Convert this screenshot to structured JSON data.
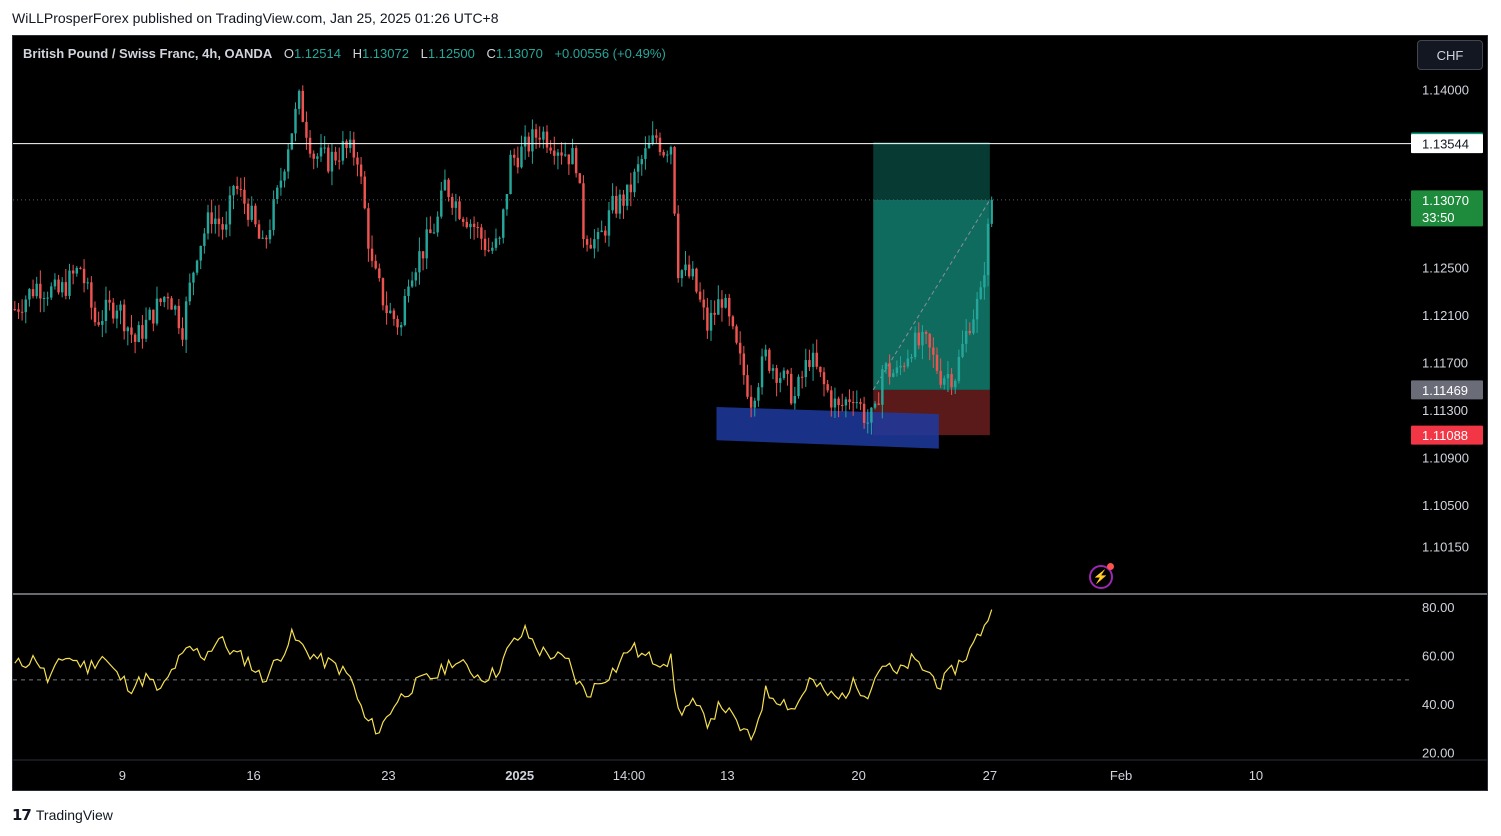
{
  "header": {
    "caption": "WiLLProsperForex published on TradingView.com, Jan 25, 2025 01:26 UTC+8"
  },
  "legend": {
    "title": "British Pound / Swiss Franc, 4h, OANDA",
    "o_label": "O",
    "o_value": "1.12514",
    "h_label": "H",
    "h_value": "1.13072",
    "l_label": "L",
    "l_value": "1.12500",
    "c_label": "C",
    "c_value": "1.13070",
    "change": "+0.00556 (+0.49%)"
  },
  "currency_button": "CHF",
  "footer": {
    "brand": "TradingView",
    "logo_icon": "tradingview-logo-icon"
  },
  "colors": {
    "up": "#26a69a",
    "down": "#ef5350",
    "background": "#000000",
    "rsi": "#f5e050",
    "target_zone": "#0e6b5e",
    "stop_zone": "#5a1a1a",
    "support_zone": "#1e3aa0"
  },
  "chart_data": [
    {
      "type": "candlestick",
      "title": "British Pound / Swiss Franc, 4h, OANDA",
      "ylim": [
        1.0975,
        1.1445
      ],
      "y_ticks": [
        "1.14000",
        "1.12500",
        "1.12100",
        "1.11700",
        "1.11300",
        "1.10900",
        "1.10500",
        "1.10150"
      ],
      "y_tick_values": [
        1.14,
        1.125,
        1.121,
        1.117,
        1.113,
        1.109,
        1.105,
        1.1015
      ],
      "x_ticks": [
        "9",
        "16",
        "23",
        "2025",
        "14:00",
        "13",
        "20",
        "27",
        "Feb",
        "10"
      ],
      "x_tick_bars": [
        30,
        66,
        103,
        139,
        169,
        196,
        232,
        268,
        304,
        341
      ],
      "price_levels": [
        {
          "label": "1.13557",
          "value": 1.13557,
          "color": "#089981"
        },
        {
          "label": "1.13544",
          "value": 1.13544,
          "color": "#ffffff"
        },
        {
          "label": "1.13070",
          "value": 1.1307,
          "color": "#1e8a3c",
          "sub": "33:50"
        },
        {
          "label": "1.11469",
          "value": 1.11469,
          "color": "#6a6d78"
        },
        {
          "label": "1.11088",
          "value": 1.11088,
          "color": "#f23645"
        }
      ],
      "horizontal_line": 1.13544,
      "last_price_line": 1.1307,
      "position_tool": {
        "start_bar": 236,
        "end_bar": 268,
        "target": 1.13557,
        "entry": 1.11469,
        "stop": 1.11088,
        "current": 1.1307
      },
      "support_zone": {
        "start_bar": 193,
        "end_bar": 254,
        "top_start": 1.11325,
        "bottom_start": 1.11045,
        "top_end": 1.11265,
        "bottom_end": 1.10975
      },
      "close_path": [
        [
          0,
          1.1215
        ],
        [
          6,
          1.1235
        ],
        [
          12,
          1.1228
        ],
        [
          18,
          1.125
        ],
        [
          22,
          1.1205
        ],
        [
          28,
          1.122
        ],
        [
          33,
          1.1188
        ],
        [
          38,
          1.1212
        ],
        [
          42,
          1.123
        ],
        [
          46,
          1.12
        ],
        [
          50,
          1.1265
        ],
        [
          54,
          1.1295
        ],
        [
          58,
          1.128
        ],
        [
          60,
          1.132
        ],
        [
          64,
          1.13
        ],
        [
          68,
          1.1265
        ],
        [
          72,
          1.131
        ],
        [
          75,
          1.1355
        ],
        [
          78,
          1.139
        ],
        [
          82,
          1.1345
        ],
        [
          86,
          1.134
        ],
        [
          90,
          1.135
        ],
        [
          94,
          1.1345
        ],
        [
          98,
          1.125
        ],
        [
          102,
          1.1215
        ],
        [
          106,
          1.12
        ],
        [
          108,
          1.1245
        ],
        [
          112,
          1.1265
        ],
        [
          116,
          1.129
        ],
        [
          118,
          1.132
        ],
        [
          122,
          1.13
        ],
        [
          126,
          1.1285
        ],
        [
          130,
          1.1265
        ],
        [
          133,
          1.127
        ],
        [
          136,
          1.134
        ],
        [
          140,
          1.135
        ],
        [
          144,
          1.1365
        ],
        [
          148,
          1.1355
        ],
        [
          152,
          1.1345
        ],
        [
          154,
          1.134
        ],
        [
          156,
          1.128
        ],
        [
          160,
          1.127
        ],
        [
          164,
          1.13
        ],
        [
          168,
          1.131
        ],
        [
          172,
          1.134
        ],
        [
          176,
          1.136
        ],
        [
          178,
          1.135
        ],
        [
          180,
          1.1355
        ],
        [
          182,
          1.125
        ],
        [
          186,
          1.124
        ],
        [
          190,
          1.12
        ],
        [
          194,
          1.1225
        ],
        [
          198,
          1.118
        ],
        [
          202,
          1.114
        ],
        [
          206,
          1.1175
        ],
        [
          210,
          1.116
        ],
        [
          214,
          1.114
        ],
        [
          218,
          1.1175
        ],
        [
          222,
          1.115
        ],
        [
          226,
          1.113
        ],
        [
          230,
          1.1145
        ],
        [
          234,
          1.112
        ],
        [
          236,
          1.1125
        ],
        [
          238,
          1.1165
        ],
        [
          242,
          1.116
        ],
        [
          246,
          1.1185
        ],
        [
          250,
          1.1185
        ],
        [
          254,
          1.116
        ],
        [
          258,
          1.116
        ],
        [
          262,
          1.1205
        ],
        [
          265,
          1.1225
        ],
        [
          268,
          1.1307
        ]
      ]
    },
    {
      "type": "line",
      "series": [
        {
          "name": "",
          "values": []
        }
      ],
      "ylim": [
        17,
        85
      ],
      "y_ticks": [
        "80.00",
        "60.00",
        "40.00",
        "20.00"
      ],
      "y_tick_values": [
        80,
        60,
        40,
        20
      ],
      "midline": 50,
      "rsi_path": [
        [
          0,
          56
        ],
        [
          6,
          59
        ],
        [
          9,
          50
        ],
        [
          14,
          60
        ],
        [
          20,
          55
        ],
        [
          24,
          60
        ],
        [
          28,
          52
        ],
        [
          32,
          47
        ],
        [
          36,
          51
        ],
        [
          40,
          45
        ],
        [
          44,
          56
        ],
        [
          48,
          63
        ],
        [
          52,
          60
        ],
        [
          56,
          67
        ],
        [
          60,
          61
        ],
        [
          64,
          58
        ],
        [
          68,
          50
        ],
        [
          72,
          58
        ],
        [
          76,
          68
        ],
        [
          80,
          62
        ],
        [
          84,
          58
        ],
        [
          88,
          56
        ],
        [
          92,
          51
        ],
        [
          96,
          34
        ],
        [
          100,
          29
        ],
        [
          104,
          40
        ],
        [
          108,
          46
        ],
        [
          112,
          50
        ],
        [
          116,
          52
        ],
        [
          120,
          58
        ],
        [
          124,
          55
        ],
        [
          128,
          51
        ],
        [
          132,
          53
        ],
        [
          136,
          64
        ],
        [
          140,
          70
        ],
        [
          144,
          62
        ],
        [
          148,
          60
        ],
        [
          152,
          57
        ],
        [
          154,
          50
        ],
        [
          157,
          44
        ],
        [
          161,
          50
        ],
        [
          165,
          55
        ],
        [
          169,
          64
        ],
        [
          172,
          60
        ],
        [
          176,
          58
        ],
        [
          180,
          58
        ],
        [
          182,
          37
        ],
        [
          186,
          40
        ],
        [
          190,
          33
        ],
        [
          194,
          40
        ],
        [
          198,
          32
        ],
        [
          202,
          25
        ],
        [
          206,
          45
        ],
        [
          210,
          42
        ],
        [
          214,
          38
        ],
        [
          218,
          50
        ],
        [
          222,
          45
        ],
        [
          226,
          42
        ],
        [
          230,
          48
        ],
        [
          234,
          45
        ],
        [
          238,
          57
        ],
        [
          242,
          52
        ],
        [
          246,
          58
        ],
        [
          250,
          54
        ],
        [
          254,
          48
        ],
        [
          258,
          55
        ],
        [
          262,
          62
        ],
        [
          265,
          70
        ],
        [
          268,
          79
        ]
      ]
    }
  ]
}
